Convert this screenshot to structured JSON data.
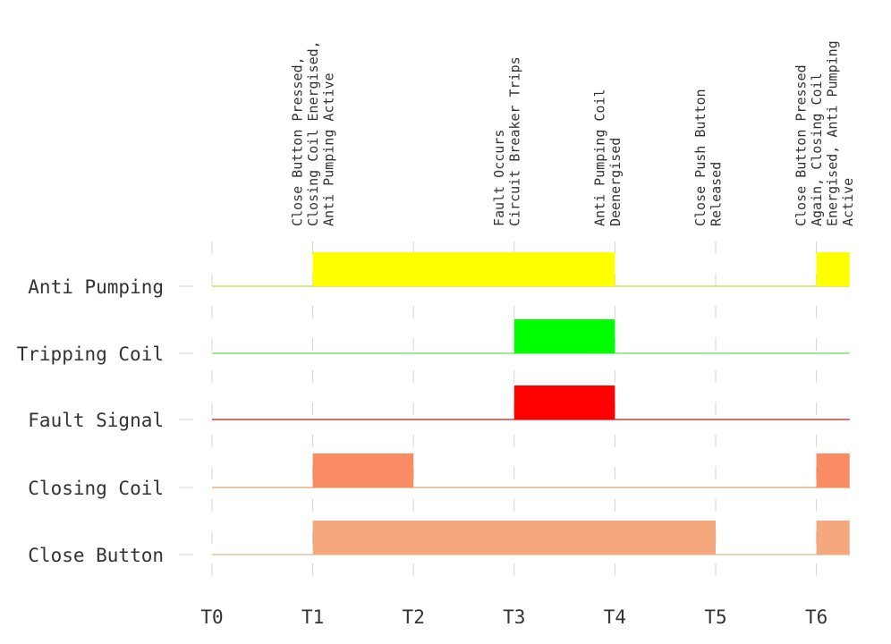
{
  "chart_data": {
    "type": "timing",
    "tick_labels": [
      "T0",
      "T1",
      "T2",
      "T3",
      "T4",
      "T5",
      "T6"
    ],
    "x_range": [
      0,
      6.33
    ],
    "signals": [
      {
        "name": "Anti Pumping",
        "color": "#ffff00",
        "baseline_color": "#c8e060",
        "pulses": [
          {
            "start": 1,
            "end": 4
          },
          {
            "start": 6,
            "end": 6.33
          }
        ]
      },
      {
        "name": "Tripping Coil",
        "color": "#00ff00",
        "baseline_color": "#80e080",
        "pulses": [
          {
            "start": 3,
            "end": 4
          }
        ]
      },
      {
        "name": "Fault Signal",
        "color": "#ff0000",
        "baseline_color": "#c84040",
        "pulses": [
          {
            "start": 3,
            "end": 4
          }
        ]
      },
      {
        "name": "Closing Coil",
        "color": "#fa8c64",
        "baseline_color": "#e0b080",
        "pulses": [
          {
            "start": 1,
            "end": 2
          },
          {
            "start": 6,
            "end": 6.33
          }
        ]
      },
      {
        "name": "Close Button",
        "color": "#f5a87d",
        "baseline_color": "#d8c8a0",
        "pulses": [
          {
            "start": 1,
            "end": 5
          },
          {
            "start": 6,
            "end": 6.33
          }
        ]
      }
    ],
    "annotations": [
      {
        "at": 1,
        "lines": [
          "Close Button Pressed,",
          "Closing Coil Energised,",
          "Anti Pumping Active"
        ]
      },
      {
        "at": 3,
        "lines": [
          "Fault Occurs",
          "Circuit Breaker Trips"
        ]
      },
      {
        "at": 4,
        "lines": [
          "Anti Pumping Coil",
          "Deenergised"
        ]
      },
      {
        "at": 5,
        "lines": [
          "Close Push Button",
          "Released"
        ]
      },
      {
        "at": 6,
        "lines": [
          "Close Button Pressed",
          "Again, Closing Coil",
          "Energised, Anti Pumping",
          "Active"
        ]
      }
    ]
  }
}
